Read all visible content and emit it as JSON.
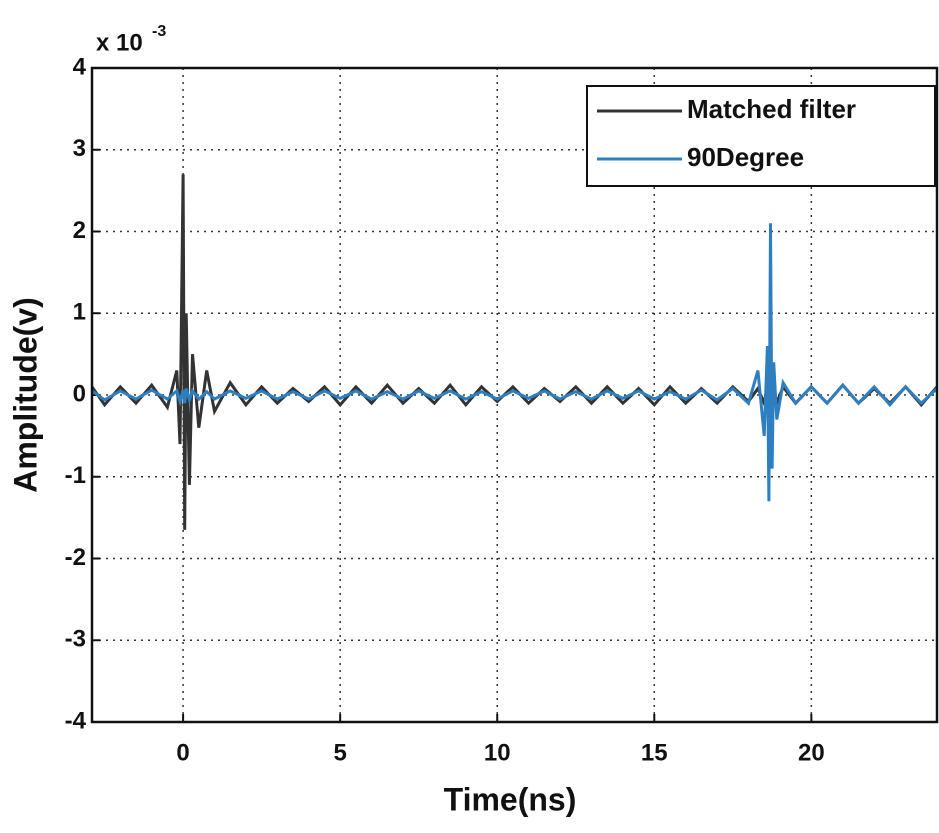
{
  "chart_data": {
    "type": "line",
    "xlabel": "Time(ns)",
    "ylabel": "Amplitude(v)",
    "y_multiplier": {
      "base": "x 10",
      "exponent": "-3"
    },
    "x": [
      -2.9,
      -2.5,
      -2,
      -1.5,
      -1,
      -0.5,
      -0.2,
      -0.1,
      0,
      0.05,
      0.1,
      0.2,
      0.3,
      0.5,
      0.75,
      1,
      1.5,
      2,
      2.5,
      3,
      3.5,
      4,
      4.5,
      5,
      5.5,
      6,
      6.5,
      7,
      7.5,
      8,
      8.5,
      9,
      9.5,
      10,
      10.5,
      11,
      11.5,
      12,
      12.5,
      13,
      13.5,
      14,
      14.5,
      15,
      15.5,
      16,
      16.5,
      17,
      17.5,
      18,
      18.3,
      18.5,
      18.6,
      18.65,
      18.7,
      18.75,
      18.8,
      18.9,
      19.1,
      19.5,
      20,
      20.5,
      21,
      21.5,
      22,
      22.5,
      23,
      23.5,
      24
    ],
    "series": [
      {
        "name": "Matched filter",
        "color": "#333333",
        "values": [
          0.1,
          -0.12,
          0.1,
          -0.1,
          0.12,
          -0.15,
          0.3,
          -0.6,
          2.7,
          -1.65,
          1.0,
          -1.1,
          0.5,
          -0.4,
          0.3,
          -0.2,
          0.15,
          -0.12,
          0.1,
          -0.1,
          0.08,
          -0.08,
          0.1,
          -0.12,
          0.1,
          -0.1,
          0.12,
          -0.1,
          0.08,
          -0.1,
          0.12,
          -0.12,
          0.1,
          -0.08,
          0.1,
          -0.1,
          0.08,
          -0.08,
          0.1,
          -0.1,
          0.1,
          -0.1,
          0.08,
          -0.12,
          0.1,
          -0.1,
          0.08,
          -0.1,
          0.1,
          -0.08,
          0.08,
          -0.1,
          0.1,
          -0.08,
          0.1,
          -0.1,
          0.08,
          -0.1,
          0.1,
          -0.1,
          0.1,
          -0.1,
          0.12,
          -0.1,
          0.08,
          -0.1,
          0.1,
          -0.12,
          0.1
        ]
      },
      {
        "name": "90Degree",
        "color": "#2e7fc0",
        "values": [
          0.05,
          -0.06,
          0.05,
          -0.05,
          0.06,
          -0.05,
          0.05,
          -0.08,
          0.06,
          -0.1,
          0.08,
          -0.06,
          0.05,
          -0.05,
          0.04,
          -0.05,
          0.05,
          -0.04,
          0.05,
          -0.05,
          0.04,
          -0.05,
          0.05,
          -0.04,
          0.05,
          -0.05,
          0.04,
          -0.05,
          0.05,
          -0.04,
          0.05,
          -0.05,
          0.04,
          -0.05,
          0.05,
          -0.04,
          0.05,
          -0.05,
          0.04,
          -0.05,
          0.05,
          -0.04,
          0.05,
          -0.05,
          0.04,
          -0.05,
          0.06,
          -0.06,
          0.08,
          -0.1,
          0.3,
          -0.5,
          0.6,
          -1.3,
          2.1,
          -0.9,
          0.4,
          -0.3,
          0.15,
          -0.1,
          0.1,
          -0.1,
          0.12,
          -0.1,
          0.1,
          -0.12,
          0.1,
          -0.1,
          0.08
        ]
      }
    ],
    "xlim": [
      -2.9,
      24
    ],
    "ylim": [
      -4,
      4
    ],
    "xticks": [
      0,
      5,
      10,
      15,
      20
    ],
    "yticks": [
      -4,
      -3,
      -2,
      -1,
      0,
      1,
      2,
      3,
      4
    ],
    "grid": true,
    "legend": "upper right"
  }
}
